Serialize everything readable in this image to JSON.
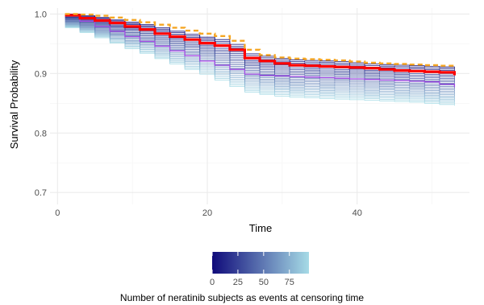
{
  "chart_data": {
    "type": "line",
    "chart_kind": "kaplan-meier survival curves",
    "xlabel": "Time",
    "ylabel": "Survival Probability",
    "xlim": [
      -1,
      55
    ],
    "ylim": [
      0.68,
      1.01
    ],
    "x_ticks": [
      0,
      20,
      40
    ],
    "y_ticks": [
      0.7,
      0.8,
      0.9,
      1.0
    ],
    "y_tick_labels": [
      "0.7",
      "0.8",
      "0.9",
      "1.0"
    ],
    "grid": true,
    "legend": {
      "title": "Number of neratinib subjects as events at censoring time",
      "type": "colorbar",
      "position": "bottom",
      "ticks": [
        0,
        25,
        50,
        75
      ],
      "range": [
        0,
        94
      ],
      "color_low": "#0f0a7a",
      "color_high": "#a6dbe6"
    },
    "colors": {
      "original": "#ff0000",
      "upper_bound": "#f5a623",
      "lower_bound": "#a24be3"
    },
    "sensitivity_curves": {
      "count": 24,
      "n_max": 94,
      "x": [
        1,
        3,
        5,
        7,
        9,
        11,
        13,
        15,
        17,
        19,
        21,
        23,
        25,
        27,
        29,
        31,
        33,
        35,
        37,
        39,
        41,
        43,
        45,
        47,
        49,
        51,
        53
      ],
      "top": [
        1.0,
        0.997,
        0.994,
        0.99,
        0.986,
        0.982,
        0.977,
        0.971,
        0.966,
        0.961,
        0.957,
        0.949,
        0.933,
        0.929,
        0.925,
        0.923,
        0.922,
        0.921,
        0.92,
        0.918,
        0.916,
        0.915,
        0.914,
        0.913,
        0.912,
        0.911,
        0.909
      ],
      "bottom": [
        0.977,
        0.969,
        0.96,
        0.951,
        0.942,
        0.934,
        0.925,
        0.916,
        0.907,
        0.899,
        0.889,
        0.878,
        0.869,
        0.865,
        0.862,
        0.86,
        0.859,
        0.858,
        0.857,
        0.856,
        0.855,
        0.854,
        0.853,
        0.852,
        0.85,
        0.848,
        0.846
      ]
    },
    "series": [
      {
        "role": "upper-bound",
        "style": "dashed",
        "x": [
          1,
          3,
          5,
          7,
          9,
          11,
          13,
          15,
          17,
          19,
          21,
          23,
          25,
          27,
          29,
          31,
          33,
          35,
          37,
          39,
          41,
          43,
          45,
          47,
          49,
          51,
          53
        ],
        "y": [
          1.0,
          0.999,
          0.997,
          0.994,
          0.99,
          0.986,
          0.982,
          0.977,
          0.972,
          0.967,
          0.963,
          0.955,
          0.94,
          0.931,
          0.927,
          0.925,
          0.924,
          0.923,
          0.922,
          0.92,
          0.918,
          0.917,
          0.916,
          0.915,
          0.914,
          0.913,
          0.909
        ]
      },
      {
        "role": "original",
        "style": "solid",
        "x": [
          1,
          3,
          5,
          7,
          9,
          11,
          13,
          15,
          17,
          19,
          21,
          23,
          25,
          27,
          29,
          31,
          33,
          35,
          37,
          39,
          41,
          43,
          45,
          47,
          49,
          51,
          53
        ],
        "y": [
          0.998,
          0.993,
          0.989,
          0.985,
          0.979,
          0.974,
          0.967,
          0.962,
          0.957,
          0.951,
          0.947,
          0.94,
          0.926,
          0.921,
          0.917,
          0.914,
          0.913,
          0.912,
          0.911,
          0.91,
          0.909,
          0.907,
          0.905,
          0.904,
          0.903,
          0.902,
          0.897
        ]
      },
      {
        "role": "lower-bound",
        "style": "solid",
        "x": [
          1,
          3,
          5,
          7,
          9,
          11,
          13,
          15,
          17,
          19,
          21,
          23,
          25,
          27,
          29,
          31,
          33,
          35,
          37,
          39,
          41,
          43,
          45,
          47,
          49,
          51,
          53
        ],
        "y": [
          0.998,
          0.988,
          0.979,
          0.971,
          0.962,
          0.954,
          0.946,
          0.938,
          0.93,
          0.921,
          0.914,
          0.907,
          0.899,
          0.897,
          0.896,
          0.895,
          0.894,
          0.893,
          0.892,
          0.891,
          0.89,
          0.889,
          0.888,
          0.887,
          0.886,
          0.882,
          0.877
        ]
      }
    ]
  }
}
